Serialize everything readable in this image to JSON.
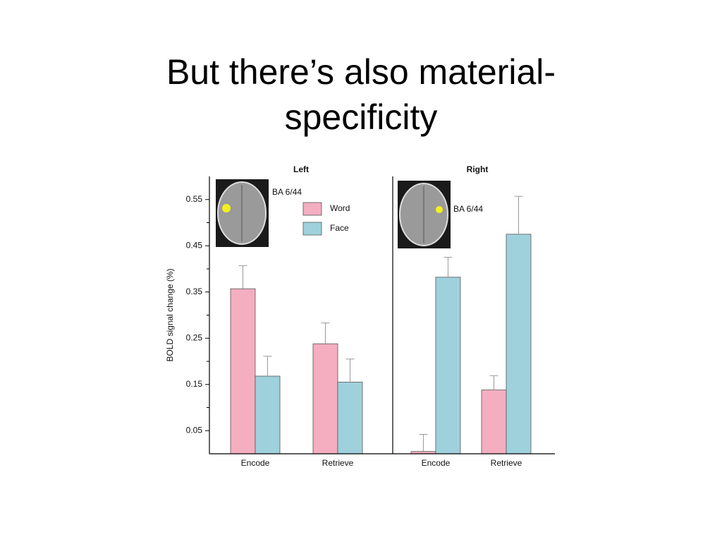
{
  "slide_title": "But there’s also material-specificity",
  "chart_data": [
    {
      "type": "bar",
      "title": "Left",
      "annotation": "BA 6/44",
      "y_label": "BOLD signal change (%)",
      "categories": [
        "Encode",
        "Retrieve"
      ],
      "series": [
        {
          "name": "Word",
          "color": "#f4aec0",
          "values": [
            0.357,
            0.238
          ],
          "errors": [
            0.05,
            0.045
          ]
        },
        {
          "name": "Face",
          "color": "#9fd1dc",
          "values": [
            0.168,
            0.155
          ],
          "errors": [
            0.043,
            0.05
          ]
        }
      ],
      "ylim": [
        0,
        0.6
      ],
      "yticks": [
        0.05,
        0.15,
        0.25,
        0.35,
        0.45,
        0.55
      ],
      "minor_yticks": [
        0.1,
        0.2,
        0.3,
        0.4,
        0.5
      ],
      "legend": "upper right"
    },
    {
      "type": "bar",
      "title": "Right",
      "annotation": "BA 6/44",
      "categories": [
        "Encode",
        "Retrieve"
      ],
      "series": [
        {
          "name": "Word",
          "color": "#f4aec0",
          "values": [
            0.005,
            0.138
          ],
          "errors": [
            0.037,
            0.031
          ]
        },
        {
          "name": "Face",
          "color": "#9fd1dc",
          "values": [
            0.382,
            0.475
          ],
          "errors": [
            0.043,
            0.082
          ]
        }
      ],
      "ylim": [
        0,
        0.6
      ]
    }
  ]
}
